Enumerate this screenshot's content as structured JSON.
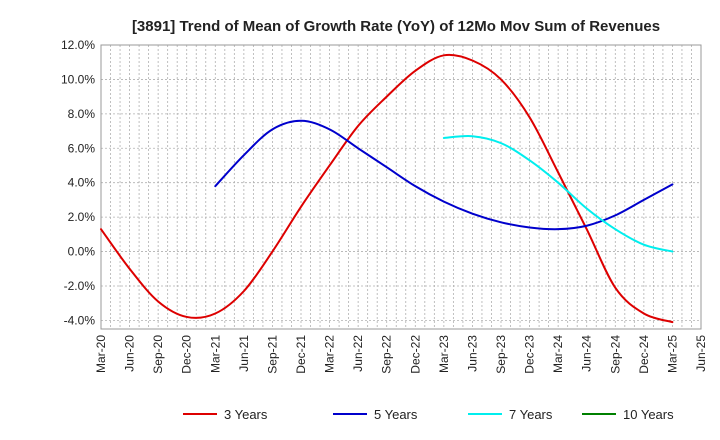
{
  "chart_data": {
    "type": "line",
    "title": "[3891]  Trend of Mean of Growth Rate (YoY) of 12Mo Mov Sum of Revenues",
    "xlabel": "",
    "ylabel": "",
    "ylim": [
      -4.5,
      12.0
    ],
    "y_ticks": [
      12.0,
      10.0,
      8.0,
      6.0,
      4.0,
      2.0,
      0.0,
      -2.0,
      -4.0
    ],
    "y_tick_labels": [
      "12.0%",
      "10.0%",
      "8.0%",
      "6.0%",
      "4.0%",
      "2.0%",
      "0.0%",
      "-2.0%",
      "-4.0%"
    ],
    "x_tick_labels": [
      "Mar-20",
      "Jun-20",
      "Sep-20",
      "Dec-20",
      "Mar-21",
      "Jun-21",
      "Sep-21",
      "Dec-21",
      "Mar-22",
      "Jun-22",
      "Sep-22",
      "Dec-22",
      "Mar-23",
      "Jun-23",
      "Sep-23",
      "Dec-23",
      "Mar-24",
      "Jun-24",
      "Sep-24",
      "Dec-24",
      "Mar-25",
      "Jun-25"
    ],
    "grid": true,
    "legend_position": "bottom",
    "series": [
      {
        "name": "3 Years",
        "color": "#dd0000",
        "start_index": 0,
        "values": [
          1.3,
          -1.0,
          -2.9,
          -3.8,
          -3.6,
          -2.3,
          0.0,
          2.6,
          5.0,
          7.3,
          9.0,
          10.5,
          11.4,
          11.1,
          10.0,
          7.8,
          4.6,
          1.3,
          -2.1,
          -3.6,
          -4.1
        ]
      },
      {
        "name": "5 Years",
        "color": "#0000cc",
        "start_index": 4,
        "values": [
          3.8,
          5.6,
          7.1,
          7.6,
          7.1,
          6.0,
          4.9,
          3.8,
          2.9,
          2.2,
          1.7,
          1.4,
          1.3,
          1.5,
          2.1,
          3.0,
          3.9
        ]
      },
      {
        "name": "7 Years",
        "color": "#00eeee",
        "start_index": 12,
        "values": [
          6.6,
          6.7,
          6.3,
          5.3,
          4.0,
          2.5,
          1.3,
          0.4,
          0.0
        ]
      },
      {
        "name": "10 Years",
        "color": "#008000",
        "start_index": 21,
        "values": []
      }
    ]
  }
}
